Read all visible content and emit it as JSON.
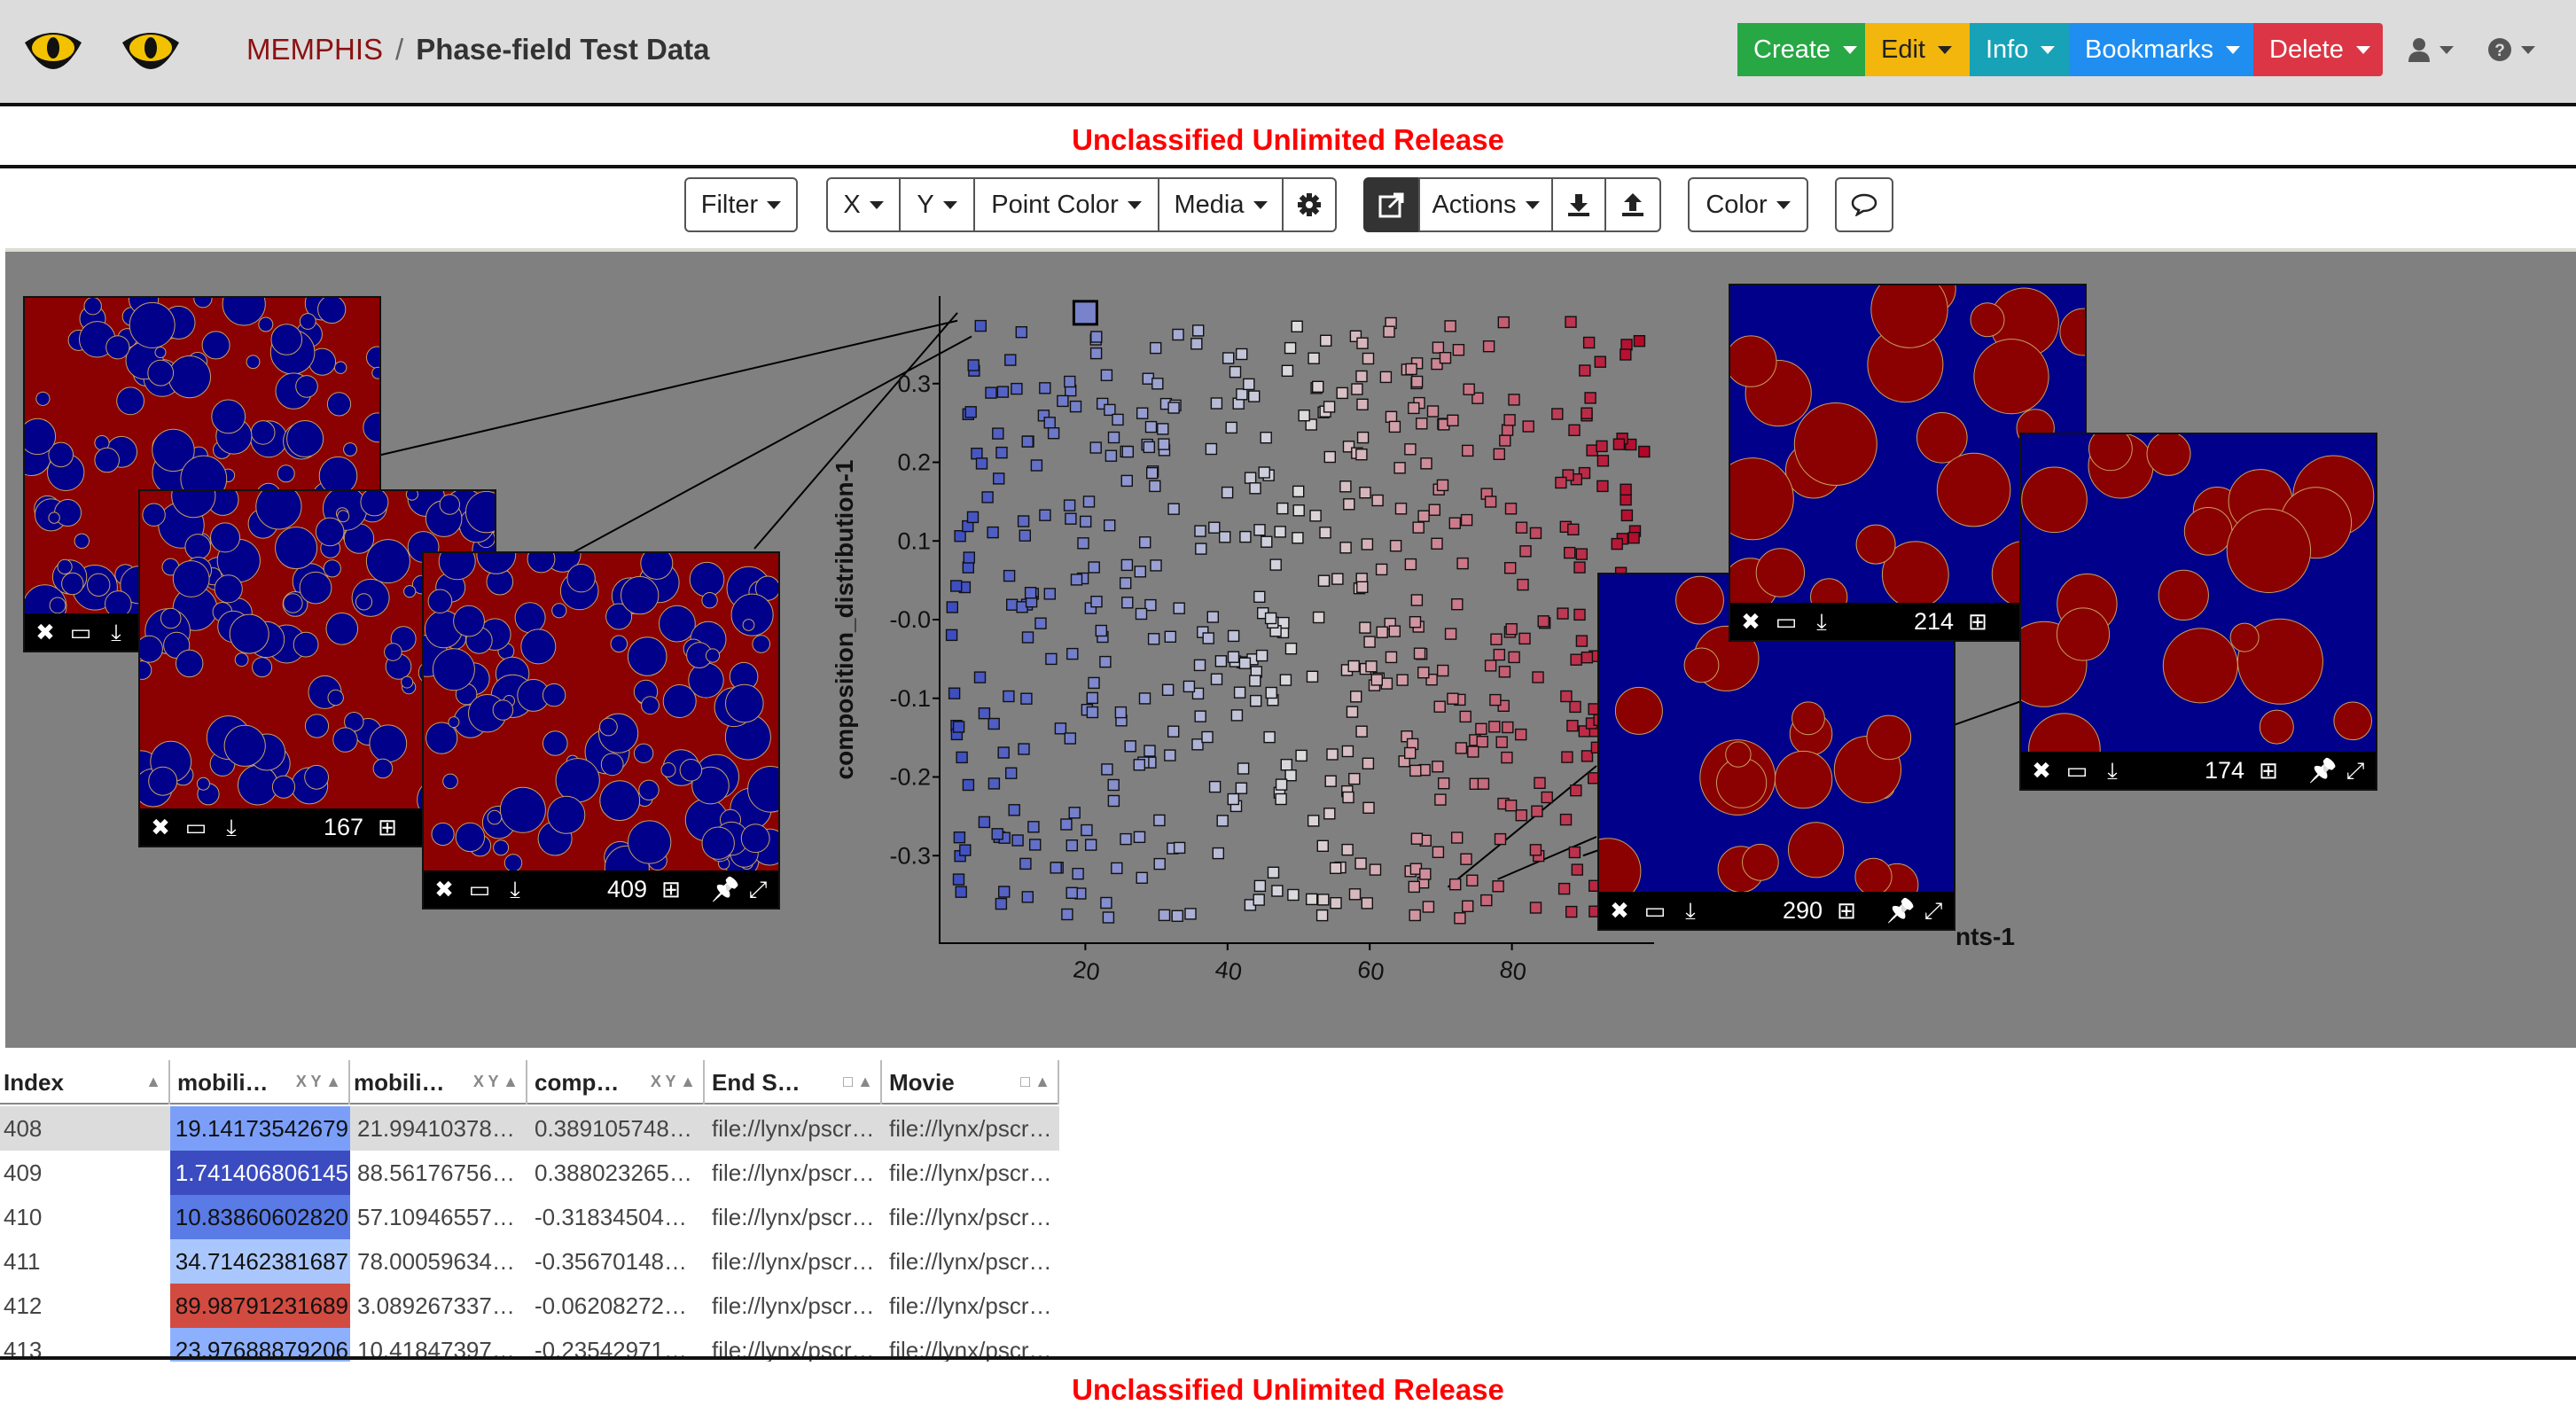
{
  "header": {
    "project": "MEMPHIS",
    "separator": "/",
    "model": "Phase-field Test Data",
    "menus": [
      {
        "label": "Create",
        "color": "#28a745"
      },
      {
        "label": "Edit",
        "color": "#f3b60c"
      },
      {
        "label": "Info",
        "color": "#17a2b8"
      },
      {
        "label": "Bookmarks",
        "color": "#1f8ef0"
      },
      {
        "label": "Delete",
        "color": "#dc3545"
      }
    ],
    "user_icon": "user-icon",
    "help_icon": "question-circle-icon"
  },
  "banner_top": "Unclassified Unlimited Release",
  "banner_bottom": "Unclassified Unlimited Release",
  "toolbar": {
    "filter": "Filter",
    "x": "X",
    "y": "Y",
    "point_color": "Point Color",
    "media": "Media",
    "settings_icon": "gear-icon",
    "open_icon": "external-link-icon",
    "actions": "Actions",
    "download_icon": "download-icon",
    "upload_icon": "upload-icon",
    "color": "Color",
    "comment_icon": "speech-bubble-icon"
  },
  "scatterplot": {
    "ylabel": "composition_distribution-1",
    "xlabel_visible_fragment": "nts-1",
    "y_ticks": [
      "0.3",
      "0.2",
      "0.1",
      "-0.0",
      "-0.1",
      "-0.2",
      "-0.3"
    ],
    "x_ticks": [
      "20",
      "40",
      "60",
      "80"
    ],
    "color_low": "#3b4cc0",
    "color_mid": "#dddddd",
    "color_high": "#b40426"
  },
  "thumbnails": [
    {
      "index": "",
      "theme": "red-matrix"
    },
    {
      "index": "167",
      "theme": "red-matrix"
    },
    {
      "index": "409",
      "theme": "red-matrix"
    },
    {
      "index": "290",
      "theme": "blue-matrix"
    },
    {
      "index": "214",
      "theme": "blue-matrix"
    },
    {
      "index": "174",
      "theme": "blue-matrix"
    }
  ],
  "table": {
    "columns": [
      "Index",
      "mobili…",
      "mobili…",
      "comp…",
      "End S…",
      "Movie"
    ],
    "rows": [
      {
        "index": "408",
        "c1": "19.14173542679",
        "c1_color": "#7b9ff9",
        "c2": "21.99410378…",
        "c3": "0.389105748…",
        "c4": "file://lynx/pscr…",
        "c5": "file://lynx/pscr…",
        "selected": true
      },
      {
        "index": "409",
        "c1": "1.741406806145",
        "c1_color": "#3b4cc0",
        "c2": "88.56176756…",
        "c3": "0.388023265…",
        "c4": "file://lynx/pscr…",
        "c5": "file://lynx/pscr…",
        "selected": false
      },
      {
        "index": "410",
        "c1": "10.83860602820",
        "c1_color": "#5a7be6",
        "c2": "57.10946557…",
        "c3": "-0.31834504…",
        "c4": "file://lynx/pscr…",
        "c5": "file://lynx/pscr…",
        "selected": false
      },
      {
        "index": "411",
        "c1": "34.71462381687",
        "c1_color": "#aac7fd",
        "c2": "78.00059634…",
        "c3": "-0.35670148…",
        "c4": "file://lynx/pscr…",
        "c5": "file://lynx/pscr…",
        "selected": false
      },
      {
        "index": "412",
        "c1": "89.98791231689",
        "c1_color": "#d24b40",
        "c2": "3.089267337…",
        "c3": "-0.06208272…",
        "c4": "file://lynx/pscr…",
        "c5": "file://lynx/pscr…",
        "selected": false
      },
      {
        "index": "413",
        "c1": "23.97688879206",
        "c1_color": "#8db0fe",
        "c2": "10.41847397…",
        "c3": "-0.23542971…",
        "c4": "file://lynx/pscr…",
        "c5": "file://lynx/pscr…",
        "selected": false
      }
    ]
  }
}
